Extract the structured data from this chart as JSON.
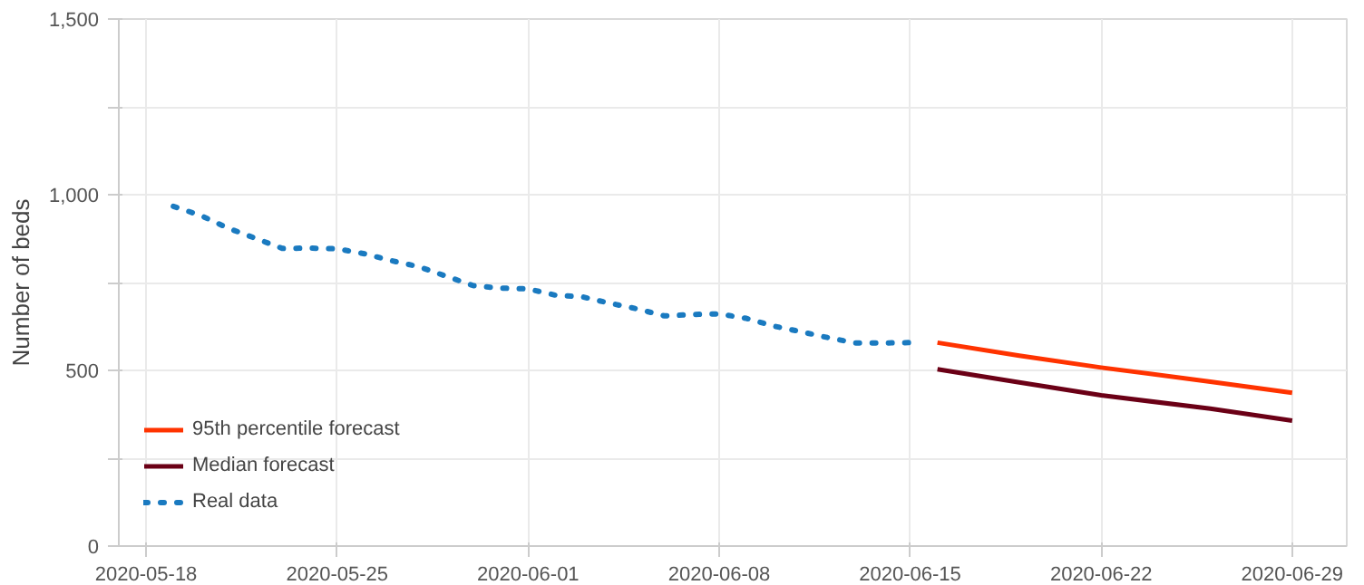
{
  "chart_data": {
    "type": "line",
    "ylabel": "Number of beds",
    "xlim": [
      "2020-05-17",
      "2020-07-01"
    ],
    "xticks": [
      "2020-05-18",
      "2020-05-25",
      "2020-06-01",
      "2020-06-08",
      "2020-06-15",
      "2020-06-22",
      "2020-06-29"
    ],
    "ylim": [
      0,
      1500
    ],
    "yticks": [
      0,
      {
        "value": 250,
        "label": null
      },
      500,
      {
        "value": 750,
        "label": null
      },
      {
        "value": 1000,
        "label": "1,000"
      },
      {
        "value": 1250,
        "label": null
      },
      {
        "value": 1500,
        "label": "1,500"
      }
    ],
    "grid": true,
    "legend": "bottom left",
    "series": [
      {
        "name": "95th percentile forecast",
        "color": "#ff3300",
        "line_style": "solid",
        "x": [
          "2020-06-16",
          "2020-06-19",
          "2020-06-22",
          "2020-06-26",
          "2020-06-29"
        ],
        "values": [
          579,
          542,
          508,
          468,
          436
        ]
      },
      {
        "name": "Median forecast",
        "color": "#6b0016",
        "line_style": "solid",
        "x": [
          "2020-06-16",
          "2020-06-19",
          "2020-06-22",
          "2020-06-26",
          "2020-06-29"
        ],
        "values": [
          503,
          466,
          429,
          391,
          357
        ]
      },
      {
        "name": "Real data",
        "color": "#1a7ac0",
        "line_style": "dotted",
        "x": [
          "2020-05-19",
          "2020-05-20",
          "2020-05-21",
          "2020-05-22",
          "2020-05-23",
          "2020-05-24",
          "2020-05-25",
          "2020-05-26",
          "2020-05-27",
          "2020-05-28",
          "2020-05-29",
          "2020-05-30",
          "2020-05-31",
          "2020-06-01",
          "2020-06-02",
          "2020-06-03",
          "2020-06-04",
          "2020-06-05",
          "2020-06-06",
          "2020-06-07",
          "2020-06-08",
          "2020-06-09",
          "2020-06-10",
          "2020-06-11",
          "2020-06-12",
          "2020-06-13",
          "2020-06-14",
          "2020-06-15"
        ],
        "values": [
          967,
          941,
          905,
          876,
          847,
          848,
          846,
          832,
          812,
          795,
          768,
          741,
          734,
          732,
          714,
          709,
          691,
          675,
          655,
          659,
          661,
          648,
          626,
          610,
          593,
          578,
          578,
          579
        ]
      }
    ]
  }
}
